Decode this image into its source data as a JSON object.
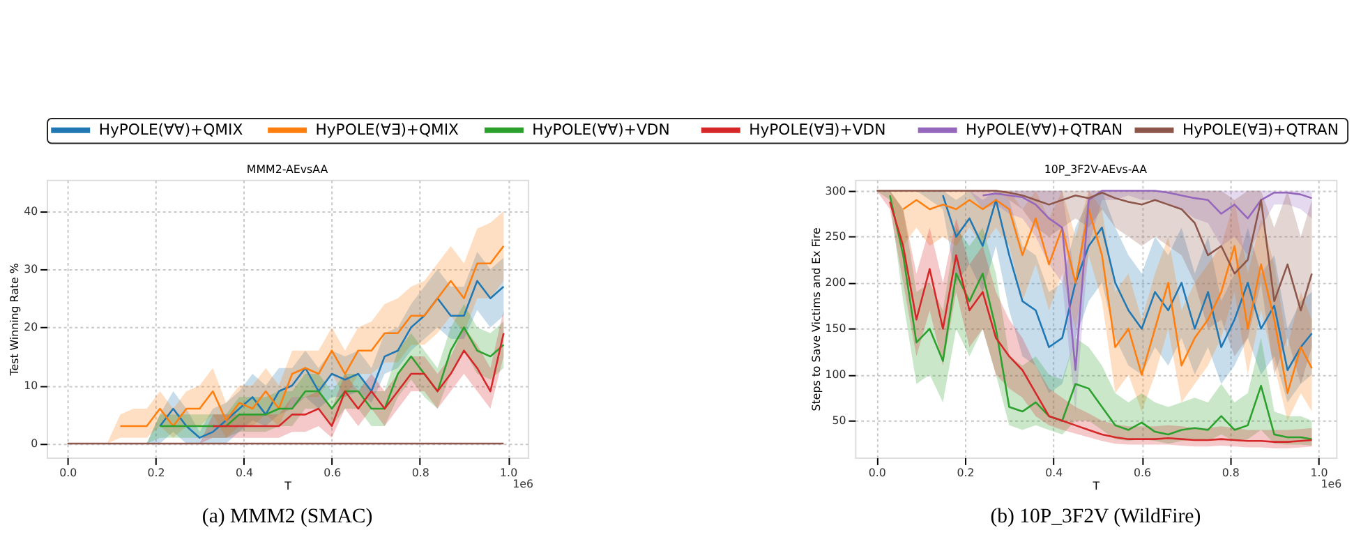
{
  "chart_data": [
    {
      "type": "line",
      "title": "MMM2-AEvsAA",
      "xlabel": "T",
      "ylabel": "Test Winning Rate %",
      "xlim": [
        -0.047,
        1.045
      ],
      "ylim": [
        -2.4,
        45.4
      ],
      "xticks": [
        {
          "value": 0,
          "label": "0.0"
        },
        0.2,
        0.4,
        0.6,
        0.8,
        {
          "value": 1,
          "label": "1.0"
        }
      ],
      "yticks": [
        0,
        10,
        20,
        30,
        40
      ],
      "grid": true,
      "legend": "top",
      "annotations": [
        "1e6",
        "(a) MMM2 (SMAC)"
      ],
      "x": [
        0,
        0.03,
        0.06,
        0.09,
        0.12,
        0.15,
        0.18,
        0.21,
        0.24,
        0.27,
        0.3,
        0.33,
        0.36,
        0.39,
        0.42,
        0.45,
        0.48,
        0.51,
        0.54,
        0.57,
        0.6,
        0.63,
        0.66,
        0.69,
        0.72,
        0.75,
        0.78,
        0.81,
        0.84,
        0.87,
        0.9,
        0.93,
        0.96,
        0.99
      ],
      "series": [
        {
          "name": "HyPOLE(∀∀)+QMIX",
          "color": "#1f77b4",
          "values": [
            null,
            null,
            null,
            null,
            null,
            null,
            null,
            3,
            6,
            3,
            1,
            2,
            4,
            6,
            8,
            5,
            9,
            10,
            13,
            9,
            12,
            11,
            12,
            9,
            15,
            16,
            20,
            22,
            25,
            22,
            22,
            28,
            25,
            27
          ],
          "lower": [
            0,
            0,
            0,
            0,
            0,
            0,
            0,
            0,
            2,
            0,
            0,
            0,
            0,
            2,
            4,
            3,
            5,
            6,
            8,
            6,
            8,
            8,
            9,
            7,
            12,
            13,
            16,
            18,
            20,
            18,
            18,
            23,
            20,
            22
          ],
          "upper": [
            0,
            0,
            0,
            0,
            0,
            0,
            0,
            5,
            9,
            6,
            2,
            6,
            7,
            9,
            12,
            10,
            13,
            13,
            16,
            13,
            16,
            15,
            16,
            13,
            19,
            20,
            24,
            27,
            30,
            27,
            27,
            33,
            30,
            32
          ]
        },
        {
          "name": "HyPOLE(∀∃)+QMIX",
          "color": "#ff7f0e",
          "values": [
            null,
            null,
            null,
            null,
            3,
            3,
            3,
            6,
            3,
            6,
            6,
            9,
            4,
            7,
            6,
            9,
            6,
            12,
            13,
            12,
            16,
            12,
            16,
            16,
            19,
            19,
            22,
            22,
            25,
            28,
            25,
            31,
            31,
            34
          ],
          "lower": [
            0,
            0,
            0,
            0,
            1,
            1,
            1,
            3,
            1,
            3,
            3,
            5,
            1,
            3,
            3,
            5,
            3,
            8,
            8,
            8,
            12,
            8,
            12,
            12,
            14,
            14,
            17,
            17,
            19,
            22,
            19,
            25,
            25,
            28
          ],
          "upper": [
            0,
            0,
            0,
            0,
            5,
            6,
            6,
            9,
            6,
            9,
            10,
            13,
            7,
            10,
            10,
            13,
            10,
            16,
            16,
            16,
            20,
            16,
            20,
            21,
            24,
            25,
            27,
            28,
            31,
            34,
            31,
            37,
            38,
            40
          ]
        },
        {
          "name": "HyPOLE(∀∀)+VDN",
          "color": "#2ca02c",
          "values": [
            null,
            null,
            null,
            null,
            null,
            null,
            null,
            3,
            3,
            3,
            3,
            3,
            3,
            5,
            5,
            5,
            6,
            6,
            9,
            9,
            6,
            9,
            9,
            6,
            6,
            12,
            15,
            12,
            9,
            16,
            20,
            16,
            15,
            17
          ],
          "lower": [
            0,
            0,
            0,
            0,
            0,
            0,
            0,
            1,
            1,
            1,
            1,
            1,
            1,
            2,
            2,
            2,
            3,
            3,
            6,
            6,
            3,
            6,
            6,
            3,
            3,
            8,
            11,
            8,
            6,
            12,
            16,
            12,
            11,
            13
          ],
          "upper": [
            0,
            0,
            0,
            0,
            0,
            0,
            0,
            5,
            5,
            5,
            5,
            5,
            5,
            8,
            8,
            8,
            9,
            9,
            12,
            12,
            9,
            12,
            12,
            9,
            9,
            16,
            19,
            16,
            13,
            20,
            24,
            20,
            19,
            21
          ]
        },
        {
          "name": "HyPOLE(∀∃)+VDN",
          "color": "#d62728",
          "values": [
            null,
            null,
            null,
            null,
            null,
            null,
            null,
            null,
            null,
            null,
            null,
            3,
            3,
            3,
            3,
            3,
            3,
            5,
            5,
            6,
            3,
            9,
            6,
            9,
            6,
            9,
            12,
            12,
            9,
            12,
            16,
            13,
            9,
            19
          ],
          "lower": [
            0,
            0,
            0,
            0,
            0,
            0,
            0,
            0,
            0,
            0,
            0,
            1,
            1,
            1,
            1,
            1,
            1,
            2,
            2,
            3,
            1,
            6,
            3,
            6,
            3,
            6,
            9,
            9,
            6,
            9,
            12,
            9,
            6,
            15
          ],
          "upper": [
            0,
            0,
            0,
            0,
            0,
            0,
            0,
            0,
            0,
            0,
            0,
            5,
            5,
            5,
            5,
            5,
            5,
            8,
            8,
            9,
            6,
            12,
            9,
            12,
            9,
            12,
            15,
            15,
            12,
            15,
            20,
            17,
            13,
            23
          ]
        },
        {
          "name": "HyPOLE(∀∃)+QTRAN",
          "color": "#8c564b",
          "x": [
            0,
            0.99
          ],
          "values": [
            0,
            0
          ]
        }
      ]
    },
    {
      "type": "line",
      "title": "10P_3F2V-AEvs-AA",
      "xlabel": "T",
      "ylabel": "Steps to Save Victims and Ex Fire",
      "xlim": [
        -0.049,
        1.04
      ],
      "ylim": [
        10,
        312
      ],
      "xticks": [
        {
          "value": 0,
          "label": "0.0"
        },
        0.2,
        0.4,
        0.6,
        0.8,
        {
          "value": 1,
          "label": "1.0"
        }
      ],
      "yticks": [
        50,
        100,
        150,
        200,
        250,
        300
      ],
      "grid": true,
      "annotations": [
        "1e6",
        "(b) 10P_3F2V (WildFire)"
      ],
      "x": [
        0,
        0.03,
        0.06,
        0.09,
        0.12,
        0.15,
        0.18,
        0.21,
        0.24,
        0.27,
        0.3,
        0.33,
        0.36,
        0.39,
        0.42,
        0.45,
        0.48,
        0.51,
        0.54,
        0.57,
        0.6,
        0.63,
        0.66,
        0.69,
        0.72,
        0.75,
        0.78,
        0.81,
        0.84,
        0.87,
        0.9,
        0.93,
        0.96,
        0.985
      ],
      "series": [
        {
          "name": "HyPOLE(∀∀)+QMIX",
          "color": "#1f77b4",
          "values": [
            null,
            null,
            null,
            null,
            null,
            295,
            250,
            270,
            240,
            290,
            230,
            180,
            170,
            130,
            140,
            200,
            240,
            260,
            200,
            170,
            150,
            190,
            170,
            200,
            150,
            190,
            130,
            160,
            200,
            150,
            175,
            105,
            130,
            145
          ],
          "lower": [
            300,
            300,
            300,
            300,
            290,
            280,
            200,
            220,
            190,
            240,
            170,
            120,
            110,
            80,
            90,
            140,
            180,
            200,
            140,
            110,
            100,
            130,
            110,
            140,
            100,
            130,
            90,
            110,
            140,
            100,
            120,
            70,
            90,
            100
          ],
          "upper": [
            300,
            300,
            300,
            300,
            300,
            300,
            290,
            300,
            290,
            300,
            290,
            240,
            230,
            190,
            200,
            260,
            290,
            300,
            260,
            230,
            210,
            250,
            230,
            260,
            210,
            250,
            180,
            210,
            260,
            210,
            230,
            150,
            180,
            190
          ]
        },
        {
          "name": "HyPOLE(∀∃)+QMIX",
          "color": "#ff7f0e",
          "values": [
            null,
            null,
            280,
            290,
            280,
            285,
            280,
            290,
            280,
            290,
            280,
            230,
            270,
            220,
            260,
            200,
            280,
            230,
            130,
            150,
            100,
            150,
            200,
            110,
            140,
            160,
            190,
            240,
            150,
            220,
            160,
            80,
            130,
            107
          ],
          "lower": [
            300,
            300,
            240,
            260,
            240,
            250,
            240,
            260,
            240,
            260,
            240,
            180,
            220,
            170,
            210,
            150,
            230,
            180,
            80,
            100,
            60,
            100,
            150,
            70,
            90,
            110,
            140,
            190,
            100,
            170,
            110,
            50,
            80,
            60
          ],
          "upper": [
            300,
            300,
            300,
            300,
            300,
            300,
            300,
            300,
            300,
            300,
            300,
            280,
            300,
            270,
            300,
            250,
            300,
            280,
            190,
            210,
            160,
            210,
            250,
            170,
            200,
            220,
            240,
            290,
            210,
            270,
            220,
            130,
            190,
            160
          ]
        },
        {
          "name": "HyPOLE(∀∀)+VDN",
          "color": "#2ca02c",
          "values": [
            null,
            295,
            230,
            135,
            150,
            115,
            210,
            180,
            210,
            150,
            65,
            60,
            70,
            55,
            50,
            90,
            85,
            65,
            45,
            40,
            48,
            38,
            35,
            40,
            42,
            40,
            55,
            40,
            45,
            88,
            35,
            32,
            32,
            30
          ],
          "lower": [
            300,
            290,
            180,
            90,
            100,
            70,
            150,
            120,
            150,
            100,
            45,
            40,
            45,
            40,
            35,
            50,
            50,
            40,
            30,
            28,
            30,
            28,
            25,
            28,
            30,
            28,
            35,
            28,
            30,
            40,
            25,
            24,
            24,
            23
          ],
          "upper": [
            300,
            300,
            280,
            190,
            200,
            170,
            260,
            240,
            260,
            210,
            120,
            110,
            120,
            100,
            95,
            140,
            130,
            110,
            80,
            70,
            80,
            70,
            65,
            70,
            75,
            70,
            90,
            70,
            80,
            140,
            60,
            55,
            55,
            50
          ]
        },
        {
          "name": "HyPOLE(∀∃)+VDN",
          "color": "#d62728",
          "values": [
            null,
            288,
            240,
            160,
            215,
            150,
            230,
            170,
            190,
            140,
            120,
            105,
            80,
            55,
            50,
            45,
            40,
            35,
            32,
            30,
            30,
            30,
            31,
            30,
            29,
            29,
            30,
            29,
            28,
            28,
            27,
            27,
            28,
            29
          ],
          "lower": [
            300,
            280,
            200,
            120,
            170,
            110,
            190,
            130,
            150,
            100,
            85,
            75,
            55,
            45,
            40,
            36,
            32,
            28,
            25,
            24,
            24,
            24,
            24,
            23,
            22,
            22,
            23,
            22,
            21,
            21,
            20,
            20,
            21,
            22
          ],
          "upper": [
            300,
            300,
            280,
            210,
            260,
            200,
            270,
            220,
            240,
            190,
            160,
            140,
            110,
            85,
            75,
            65,
            58,
            50,
            46,
            44,
            44,
            44,
            45,
            44,
            42,
            42,
            44,
            42,
            40,
            40,
            40,
            40,
            41,
            42
          ]
        },
        {
          "name": "HyPOLE(∀∀)+QTRAN",
          "color": "#9467bd",
          "values": [
            null,
            null,
            null,
            null,
            null,
            null,
            null,
            null,
            295,
            297,
            295,
            293,
            285,
            270,
            260,
            105,
            290,
            300,
            300,
            300,
            300,
            300,
            298,
            295,
            292,
            290,
            275,
            285,
            270,
            290,
            298,
            298,
            296,
            292
          ],
          "lower": [
            300,
            300,
            300,
            300,
            300,
            300,
            300,
            300,
            280,
            285,
            275,
            270,
            250,
            220,
            200,
            60,
            240,
            290,
            290,
            295,
            290,
            290,
            285,
            280,
            270,
            265,
            240,
            250,
            230,
            260,
            285,
            285,
            280,
            270
          ],
          "upper": [
            300,
            300,
            300,
            300,
            300,
            300,
            300,
            300,
            300,
            300,
            300,
            300,
            300,
            300,
            300,
            200,
            300,
            300,
            300,
            300,
            300,
            300,
            300,
            300,
            300,
            300,
            300,
            300,
            300,
            300,
            300,
            300,
            300,
            300
          ]
        },
        {
          "name": "HyPOLE(∀∃)+QTRAN",
          "color": "#8c564b",
          "values": [
            300,
            300,
            300,
            300,
            300,
            300,
            300,
            300,
            300,
            300,
            298,
            295,
            290,
            285,
            290,
            295,
            292,
            298,
            292,
            288,
            285,
            290,
            285,
            280,
            265,
            230,
            240,
            210,
            225,
            290,
            180,
            220,
            170,
            210
          ],
          "lower": [
            300,
            300,
            300,
            300,
            300,
            300,
            300,
            300,
            300,
            300,
            290,
            280,
            260,
            250,
            260,
            270,
            260,
            280,
            260,
            250,
            240,
            250,
            240,
            230,
            200,
            150,
            160,
            120,
            140,
            200,
            100,
            140,
            90,
            130
          ],
          "upper": [
            300,
            300,
            300,
            300,
            300,
            300,
            300,
            300,
            300,
            300,
            300,
            300,
            300,
            300,
            300,
            300,
            300,
            300,
            300,
            300,
            300,
            300,
            300,
            300,
            300,
            300,
            300,
            290,
            300,
            300,
            260,
            300,
            250,
            290
          ]
        }
      ]
    }
  ]
}
